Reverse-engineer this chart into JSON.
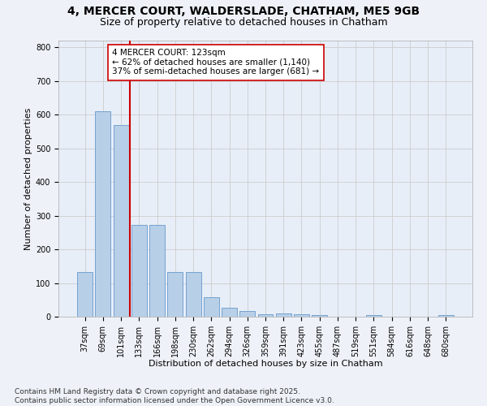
{
  "title1": "4, MERCER COURT, WALDERSLADE, CHATHAM, ME5 9GB",
  "title2": "Size of property relative to detached houses in Chatham",
  "xlabel": "Distribution of detached houses by size in Chatham",
  "ylabel": "Number of detached properties",
  "categories": [
    "37sqm",
    "69sqm",
    "101sqm",
    "133sqm",
    "166sqm",
    "198sqm",
    "230sqm",
    "262sqm",
    "294sqm",
    "326sqm",
    "359sqm",
    "391sqm",
    "423sqm",
    "455sqm",
    "487sqm",
    "519sqm",
    "551sqm",
    "584sqm",
    "616sqm",
    "648sqm",
    "680sqm"
  ],
  "values": [
    133,
    611,
    570,
    272,
    272,
    133,
    133,
    58,
    27,
    16,
    8,
    10,
    8,
    5,
    0,
    0,
    5,
    0,
    0,
    0,
    5
  ],
  "bar_color": "#b8cfe8",
  "bar_edge_color": "#6699cc",
  "bar_width": 0.85,
  "vline_x": 2.5,
  "vline_color": "#cc0000",
  "annotation_text": "4 MERCER COURT: 123sqm\n← 62% of detached houses are smaller (1,140)\n37% of semi-detached houses are larger (681) →",
  "annotation_box_color": "#ffffff",
  "annotation_box_edge": "#cc0000",
  "ylim": [
    0,
    820
  ],
  "yticks": [
    0,
    100,
    200,
    300,
    400,
    500,
    600,
    700,
    800
  ],
  "grid_color": "#cccccc",
  "bg_color": "#e8eef8",
  "fig_bg_color": "#eef2f8",
  "footnote": "Contains HM Land Registry data © Crown copyright and database right 2025.\nContains public sector information licensed under the Open Government Licence v3.0.",
  "title_fontsize": 10,
  "subtitle_fontsize": 9,
  "axis_label_fontsize": 8,
  "tick_fontsize": 7,
  "annot_fontsize": 7.5,
  "footnote_fontsize": 6.5
}
